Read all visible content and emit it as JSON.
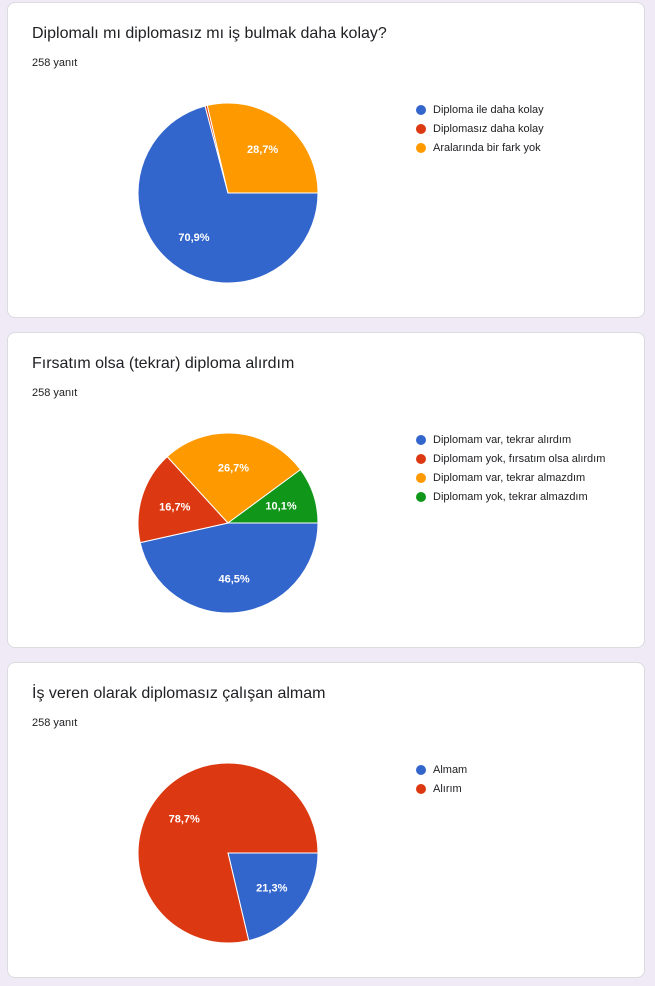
{
  "charts": [
    {
      "title": "Diplomalı mı diplomasız mı iş bulmak daha kolay?",
      "count": "258 yanıt"
    },
    {
      "title": "Fırsatım olsa (tekrar) diploma alırdım",
      "count": "258 yanıt"
    },
    {
      "title": "İş veren olarak diplomasız çalışan almam",
      "count": "258 yanıt"
    }
  ],
  "chart_data": [
    {
      "type": "pie",
      "title": "Diplomalı mı diplomasız mı iş bulmak daha kolay?",
      "subtitle": "258 yanıt",
      "legend_position": "right",
      "slices": [
        {
          "label": "Diploma ile daha kolay",
          "value": 70.9,
          "display": "70,9%",
          "color": "#3366cc"
        },
        {
          "label": "Diplomasız daha kolay",
          "value": 0.4,
          "display": "",
          "color": "#dc3912"
        },
        {
          "label": "Aralarında bir fark yok",
          "value": 28.7,
          "display": "28,7%",
          "color": "#ff9900"
        }
      ]
    },
    {
      "type": "pie",
      "title": "Fırsatım olsa (tekrar) diploma alırdım",
      "subtitle": "258 yanıt",
      "legend_position": "right",
      "slices": [
        {
          "label": "Diplomam var, tekrar alırdım",
          "value": 46.5,
          "display": "46,5%",
          "color": "#3366cc"
        },
        {
          "label": "Diplomam yok, fırsatım olsa alırdım",
          "value": 16.7,
          "display": "16,7%",
          "color": "#dc3912"
        },
        {
          "label": "Diplomam var, tekrar almazdım",
          "value": 26.7,
          "display": "26,7%",
          "color": "#ff9900"
        },
        {
          "label": "Diplomam yok, tekrar almazdım",
          "value": 10.1,
          "display": "10,1%",
          "color": "#109618"
        }
      ]
    },
    {
      "type": "pie",
      "title": "İş veren olarak diplomasız çalışan almam",
      "subtitle": "258 yanıt",
      "legend_position": "right",
      "slices": [
        {
          "label": "Almam",
          "value": 21.3,
          "display": "21,3%",
          "color": "#3366cc"
        },
        {
          "label": "Alırım",
          "value": 78.7,
          "display": "78,7%",
          "color": "#dc3912"
        }
      ]
    }
  ]
}
